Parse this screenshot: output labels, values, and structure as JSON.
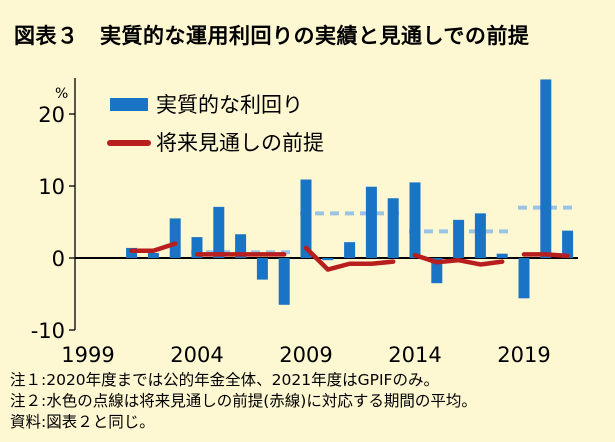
{
  "title": "図表３　実質的な運用利回りの実績と見通しでの前提",
  "notes": [
    "注１:2020年度までは公的年金全体、2021年度はGPIFのみ。",
    "注２:水色の点線は将来見通しの前提(赤線)に対応する期間の平均。",
    "資料:図表２と同じ。"
  ],
  "chart_data": {
    "type": "bar",
    "yunit": "%",
    "ylim": [
      -10,
      25
    ],
    "yticks": [
      -10,
      0,
      10,
      20
    ],
    "xlim": [
      1999,
      2022
    ],
    "xticks": [
      1999,
      2004,
      2009,
      2014,
      2019
    ],
    "grid": false,
    "legend_position": "top-left",
    "colors": {
      "bar": "#1a74c6",
      "assumption": "#b81e1e",
      "average": "#9ac4e4"
    },
    "legend": [
      {
        "label": "実質的な利回り",
        "kind": "bar"
      },
      {
        "label": "将来見通しの前提",
        "kind": "line"
      }
    ],
    "bars": {
      "name": "実質的な利回り",
      "x": [
        2001,
        2002,
        2003,
        2004,
        2005,
        2006,
        2007,
        2008,
        2009,
        2010,
        2011,
        2012,
        2013,
        2014,
        2015,
        2016,
        2017,
        2018,
        2019,
        2020,
        2021
      ],
      "values": [
        1.4,
        0.7,
        5.5,
        2.9,
        7.1,
        3.3,
        -3.0,
        -6.5,
        10.9,
        -0.3,
        2.2,
        9.9,
        8.3,
        10.5,
        -3.5,
        5.3,
        6.2,
        0.6,
        -5.6,
        24.8,
        3.8
      ]
    },
    "assumption_segments": [
      {
        "x": [
          2001,
          2002,
          2003
        ],
        "y": [
          1.0,
          1.0,
          2.0
        ]
      },
      {
        "x": [
          2004,
          2005,
          2006,
          2007,
          2008
        ],
        "y": [
          0.5,
          0.5,
          0.5,
          0.5,
          0.5
        ]
      },
      {
        "x": [
          2009,
          2010,
          2011,
          2012,
          2013
        ],
        "y": [
          1.4,
          -1.6,
          -0.8,
          -0.8,
          -0.5
        ]
      },
      {
        "x": [
          2014,
          2015,
          2016,
          2017,
          2018
        ],
        "y": [
          0.4,
          -0.6,
          -0.3,
          -0.9,
          -0.5
        ]
      },
      {
        "x": [
          2019,
          2020,
          2021
        ],
        "y": [
          0.5,
          0.5,
          0.3
        ]
      }
    ],
    "average_segments": [
      {
        "x": [
          2004,
          2008
        ],
        "y": 0.8
      },
      {
        "x": [
          2009,
          2013
        ],
        "y": 6.2
      },
      {
        "x": [
          2014,
          2018
        ],
        "y": 3.7
      },
      {
        "x": [
          2019,
          2021
        ],
        "y": 7.0
      }
    ]
  }
}
